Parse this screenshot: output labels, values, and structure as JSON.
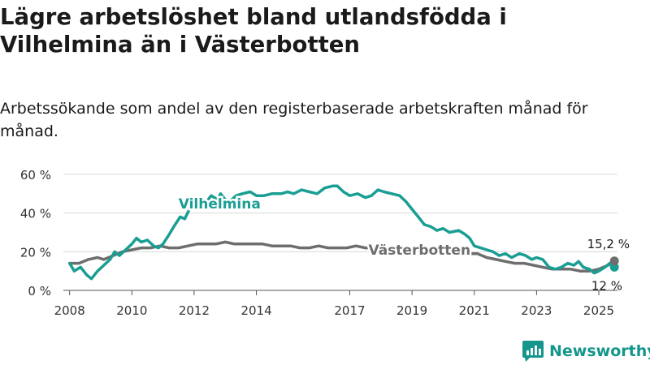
{
  "title": "Lägre arbetslöshet bland utlandsfödda i Vilhelmina än i Västerbotten",
  "subtitle": "Arbetssökande som andel av den registerbaserade arbetskraften månad för månad.",
  "brand": {
    "name": "Newsworthy",
    "color": "#15968c"
  },
  "chart_data": {
    "type": "line",
    "ylim": [
      0,
      60
    ],
    "xlim": [
      2007.8,
      2025.6
    ],
    "yticks": [
      0,
      20,
      40,
      60
    ],
    "ytick_labels": [
      "0 %",
      "20 %",
      "40 %",
      "60 %"
    ],
    "xticks": [
      2008,
      2010,
      2012,
      2014,
      2017,
      2019,
      2021,
      2023,
      2025
    ],
    "xtick_labels": [
      "2008",
      "2010",
      "2012",
      "2014",
      "2017",
      "2019",
      "2021",
      "2023",
      "2025"
    ],
    "grid": true,
    "series": [
      {
        "name": "Vilhelmina",
        "color": "#1a9e94",
        "end_label": "12 %",
        "points": [
          [
            2008.0,
            14
          ],
          [
            2008.15,
            10
          ],
          [
            2008.35,
            12
          ],
          [
            2008.55,
            8
          ],
          [
            2008.7,
            6
          ],
          [
            2008.9,
            10
          ],
          [
            2009.1,
            13
          ],
          [
            2009.3,
            16
          ],
          [
            2009.45,
            20
          ],
          [
            2009.6,
            18
          ],
          [
            2009.8,
            21
          ],
          [
            2010.0,
            24
          ],
          [
            2010.15,
            27
          ],
          [
            2010.3,
            25
          ],
          [
            2010.5,
            26
          ],
          [
            2010.7,
            23
          ],
          [
            2010.85,
            22
          ],
          [
            2011.0,
            24
          ],
          [
            2011.2,
            29
          ],
          [
            2011.35,
            33
          ],
          [
            2011.55,
            38
          ],
          [
            2011.7,
            37
          ],
          [
            2011.85,
            42
          ],
          [
            2012.0,
            45
          ],
          [
            2012.2,
            45
          ],
          [
            2012.4,
            46
          ],
          [
            2012.55,
            49
          ],
          [
            2012.75,
            47
          ],
          [
            2012.85,
            50
          ],
          [
            2013.0,
            47
          ],
          [
            2013.15,
            46
          ],
          [
            2013.35,
            49
          ],
          [
            2013.55,
            50
          ],
          [
            2013.8,
            51
          ],
          [
            2014.0,
            49
          ],
          [
            2014.25,
            49
          ],
          [
            2014.5,
            50
          ],
          [
            2014.8,
            50
          ],
          [
            2015.0,
            51
          ],
          [
            2015.2,
            50
          ],
          [
            2015.45,
            52
          ],
          [
            2015.7,
            51
          ],
          [
            2015.95,
            50
          ],
          [
            2016.2,
            53
          ],
          [
            2016.45,
            54
          ],
          [
            2016.6,
            54
          ],
          [
            2016.8,
            51
          ],
          [
            2017.0,
            49
          ],
          [
            2017.25,
            50
          ],
          [
            2017.5,
            48
          ],
          [
            2017.7,
            49
          ],
          [
            2017.9,
            52
          ],
          [
            2018.1,
            51
          ],
          [
            2018.35,
            50
          ],
          [
            2018.6,
            49
          ],
          [
            2018.8,
            46
          ],
          [
            2019.0,
            42
          ],
          [
            2019.2,
            38
          ],
          [
            2019.4,
            34
          ],
          [
            2019.6,
            33
          ],
          [
            2019.8,
            31
          ],
          [
            2020.0,
            32
          ],
          [
            2020.2,
            30
          ],
          [
            2020.5,
            31
          ],
          [
            2020.7,
            29
          ],
          [
            2020.85,
            27
          ],
          [
            2021.0,
            23
          ],
          [
            2021.2,
            22
          ],
          [
            2021.4,
            21
          ],
          [
            2021.6,
            20
          ],
          [
            2021.8,
            18
          ],
          [
            2022.0,
            19
          ],
          [
            2022.2,
            17
          ],
          [
            2022.45,
            19
          ],
          [
            2022.65,
            18
          ],
          [
            2022.85,
            16
          ],
          [
            2023.0,
            17
          ],
          [
            2023.2,
            16
          ],
          [
            2023.4,
            12
          ],
          [
            2023.6,
            11
          ],
          [
            2023.8,
            12
          ],
          [
            2024.0,
            14
          ],
          [
            2024.2,
            13
          ],
          [
            2024.35,
            15
          ],
          [
            2024.5,
            12
          ],
          [
            2024.7,
            11
          ],
          [
            2024.85,
            9
          ],
          [
            2025.0,
            10
          ],
          [
            2025.2,
            12
          ],
          [
            2025.35,
            14
          ],
          [
            2025.5,
            12
          ]
        ]
      },
      {
        "name": "Västerbotten",
        "color": "#6e6e6e",
        "end_label": "15,2 %",
        "points": [
          [
            2008.0,
            14
          ],
          [
            2008.3,
            14
          ],
          [
            2008.6,
            16
          ],
          [
            2008.9,
            17
          ],
          [
            2009.1,
            16
          ],
          [
            2009.4,
            18
          ],
          [
            2009.7,
            20
          ],
          [
            2010.0,
            21
          ],
          [
            2010.3,
            22
          ],
          [
            2010.6,
            22
          ],
          [
            2010.9,
            23
          ],
          [
            2011.2,
            22
          ],
          [
            2011.5,
            22
          ],
          [
            2011.8,
            23
          ],
          [
            2012.1,
            24
          ],
          [
            2012.4,
            24
          ],
          [
            2012.7,
            24
          ],
          [
            2013.0,
            25
          ],
          [
            2013.3,
            24
          ],
          [
            2013.6,
            24
          ],
          [
            2013.9,
            24
          ],
          [
            2014.2,
            24
          ],
          [
            2014.5,
            23
          ],
          [
            2014.8,
            23
          ],
          [
            2015.1,
            23
          ],
          [
            2015.4,
            22
          ],
          [
            2015.7,
            22
          ],
          [
            2016.0,
            23
          ],
          [
            2016.3,
            22
          ],
          [
            2016.6,
            22
          ],
          [
            2016.9,
            22
          ],
          [
            2017.2,
            23
          ],
          [
            2017.5,
            22
          ],
          [
            2017.8,
            22
          ],
          [
            2018.1,
            21
          ],
          [
            2018.4,
            21
          ],
          [
            2018.7,
            21
          ],
          [
            2019.0,
            21
          ],
          [
            2019.3,
            21
          ],
          [
            2019.6,
            21
          ],
          [
            2019.9,
            20
          ],
          [
            2020.2,
            20
          ],
          [
            2020.5,
            20
          ],
          [
            2020.8,
            19
          ],
          [
            2021.1,
            19
          ],
          [
            2021.4,
            17
          ],
          [
            2021.7,
            16
          ],
          [
            2022.0,
            15
          ],
          [
            2022.3,
            14
          ],
          [
            2022.6,
            14
          ],
          [
            2022.9,
            13
          ],
          [
            2023.2,
            12
          ],
          [
            2023.5,
            11
          ],
          [
            2023.8,
            11
          ],
          [
            2024.1,
            11
          ],
          [
            2024.4,
            10
          ],
          [
            2024.7,
            10
          ],
          [
            2025.0,
            11
          ],
          [
            2025.3,
            13
          ],
          [
            2025.5,
            15.2
          ]
        ]
      }
    ],
    "series_labels": [
      {
        "series": "Vilhelmina",
        "text": "Vilhelmina",
        "x": 2011.5,
        "y": 45
      },
      {
        "series": "Västerbotten",
        "text": "Västerbotten",
        "x": 2017.6,
        "y": 21
      }
    ]
  }
}
